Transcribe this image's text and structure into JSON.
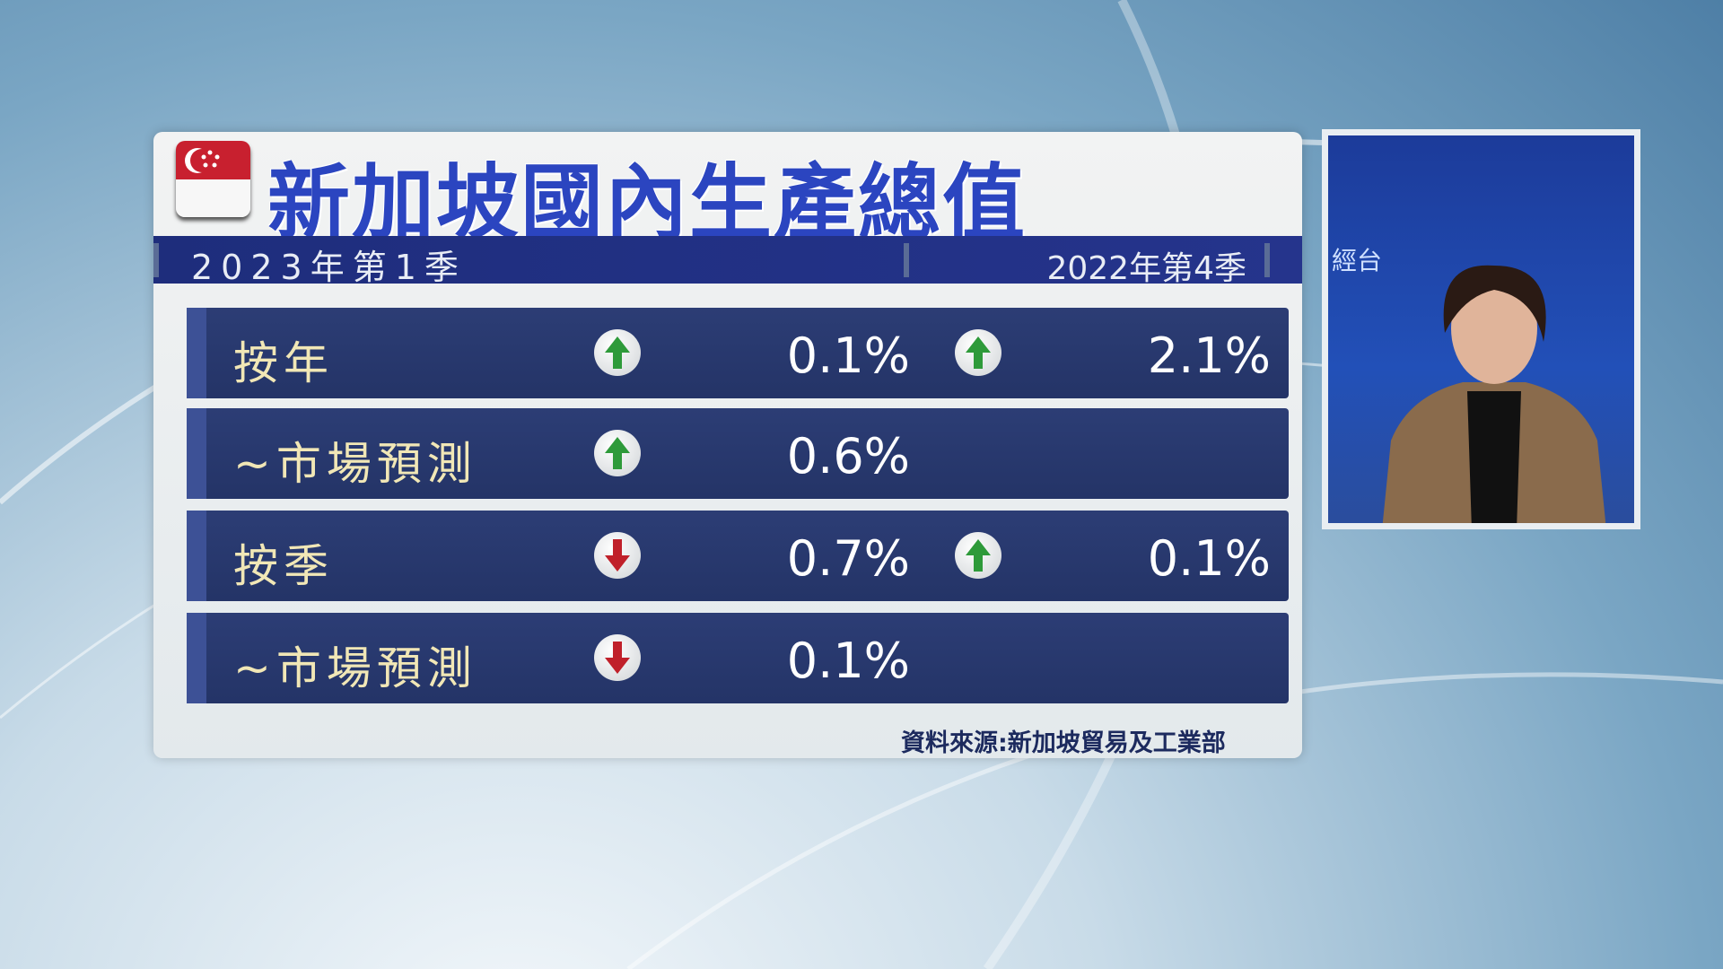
{
  "title": "新加坡國內生產總值",
  "header": {
    "current_period": "2023年第1季",
    "previous_period": "2022年第4季"
  },
  "rows": [
    {
      "label": "按年",
      "current": {
        "direction": "up",
        "value": "0.1%"
      },
      "previous": {
        "direction": "up",
        "value": "2.1%"
      }
    },
    {
      "label": "~市場預測",
      "current": {
        "direction": "up",
        "value": "0.6%"
      }
    },
    {
      "label": "按季",
      "current": {
        "direction": "down",
        "value": "0.7%"
      },
      "previous": {
        "direction": "up",
        "value": "0.1%"
      }
    },
    {
      "label": "~市場預測",
      "current": {
        "direction": "down",
        "value": "0.1%"
      }
    }
  ],
  "source": "資料來源:新加坡貿易及工業部",
  "inset": {
    "channel_text": "經台"
  },
  "colors": {
    "up": "#2e9a3a",
    "down": "#c0202a",
    "title": "#2b45c0",
    "row": "#2c3d75",
    "label": "#f1e7b6"
  }
}
